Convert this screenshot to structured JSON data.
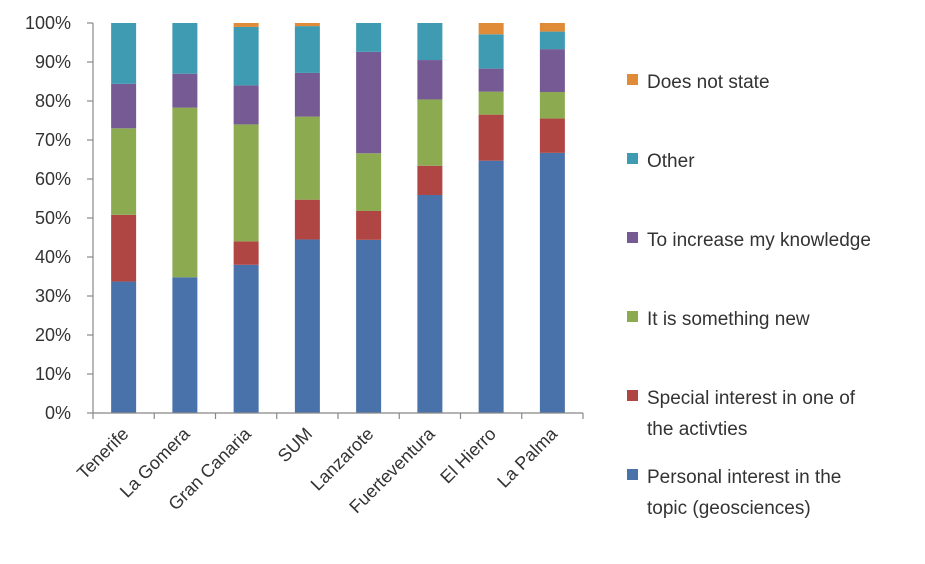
{
  "chart_data": {
    "type": "bar",
    "stacked": true,
    "percent": true,
    "categories": [
      "Tenerife",
      "La Gomera",
      "Gran Canaria",
      "SUM",
      "Lanzarote",
      "Fuerteventura",
      "El Hierro",
      "La Palma"
    ],
    "series": [
      {
        "name": "Personal interest in the topic (geosciences)",
        "color": "#4a72aa",
        "values": [
          33.7,
          34.8,
          38.0,
          44.5,
          44.4,
          55.9,
          64.7,
          66.7
        ]
      },
      {
        "name": "Special interest in one of the activties",
        "color": "#b04643",
        "values": [
          17.1,
          0.0,
          6.0,
          10.2,
          7.4,
          7.5,
          11.8,
          8.8
        ]
      },
      {
        "name": "It is something new",
        "color": "#8caa50",
        "values": [
          22.2,
          43.5,
          30.0,
          21.3,
          14.8,
          17.0,
          5.9,
          6.8
        ]
      },
      {
        "name": "To increase my knowledge",
        "color": "#765a94",
        "values": [
          11.4,
          8.7,
          10.0,
          11.2,
          26.0,
          10.1,
          5.9,
          11.0
        ]
      },
      {
        "name": "Other",
        "color": "#3f9bb2",
        "values": [
          15.6,
          13.0,
          15.0,
          12.0,
          7.4,
          9.5,
          8.8,
          4.5
        ]
      },
      {
        "name": "Does not state",
        "color": "#e08b38",
        "values": [
          0.0,
          0.0,
          1.0,
          0.8,
          0.0,
          0.0,
          2.9,
          2.2
        ]
      }
    ],
    "ylim": [
      0,
      100
    ],
    "y_ticks": [
      "0%",
      "10%",
      "20%",
      "30%",
      "40%",
      "50%",
      "60%",
      "70%",
      "80%",
      "90%",
      "100%"
    ],
    "xlabel": "",
    "ylabel": "",
    "grid": false,
    "legend_position": "right"
  }
}
